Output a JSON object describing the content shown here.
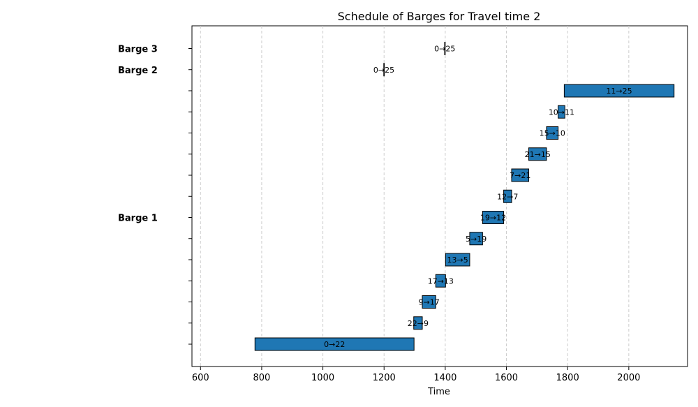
{
  "chart_data": {
    "type": "gantt",
    "title": "Schedule of Barges for Travel time 2",
    "xlabel": "Time",
    "ylabel": "",
    "xlim": [
      572,
      2192
    ],
    "x_ticks": [
      600,
      800,
      1000,
      1200,
      1400,
      1600,
      1800,
      2000
    ],
    "grid": {
      "x": true,
      "y": false,
      "style": "dashed"
    },
    "bar_color": "#1f77b4",
    "edge_color": "#000000",
    "rows": 15,
    "barge_labels": [
      {
        "label": "Barge 1",
        "row": 6
      },
      {
        "label": "Barge 2",
        "row": 13
      },
      {
        "label": "Barge 3",
        "row": 14
      }
    ],
    "tasks": [
      {
        "label": "0→22",
        "row": 0,
        "start": 778,
        "end": 1298
      },
      {
        "label": "22→9",
        "row": 1,
        "start": 1297,
        "end": 1325
      },
      {
        "label": "9→17",
        "row": 2,
        "start": 1325,
        "end": 1369
      },
      {
        "label": "17→13",
        "row": 3,
        "start": 1369,
        "end": 1401
      },
      {
        "label": "13→5",
        "row": 4,
        "start": 1401,
        "end": 1480
      },
      {
        "label": "5→19",
        "row": 5,
        "start": 1480,
        "end": 1522
      },
      {
        "label": "19→12",
        "row": 6,
        "start": 1522,
        "end": 1591
      },
      {
        "label": "12→7",
        "row": 7,
        "start": 1591,
        "end": 1617
      },
      {
        "label": "7→21",
        "row": 8,
        "start": 1617,
        "end": 1673
      },
      {
        "label": "21→15",
        "row": 9,
        "start": 1673,
        "end": 1731
      },
      {
        "label": "15→10",
        "row": 10,
        "start": 1731,
        "end": 1769
      },
      {
        "label": "10→11",
        "row": 11,
        "start": 1769,
        "end": 1791
      },
      {
        "label": "11→25",
        "row": 12,
        "start": 1789,
        "end": 2148
      },
      {
        "label": "0→25",
        "row": 13,
        "start": 1199,
        "end": 1200
      },
      {
        "label": "0→25",
        "row": 14,
        "start": 1398,
        "end": 1399
      }
    ]
  }
}
